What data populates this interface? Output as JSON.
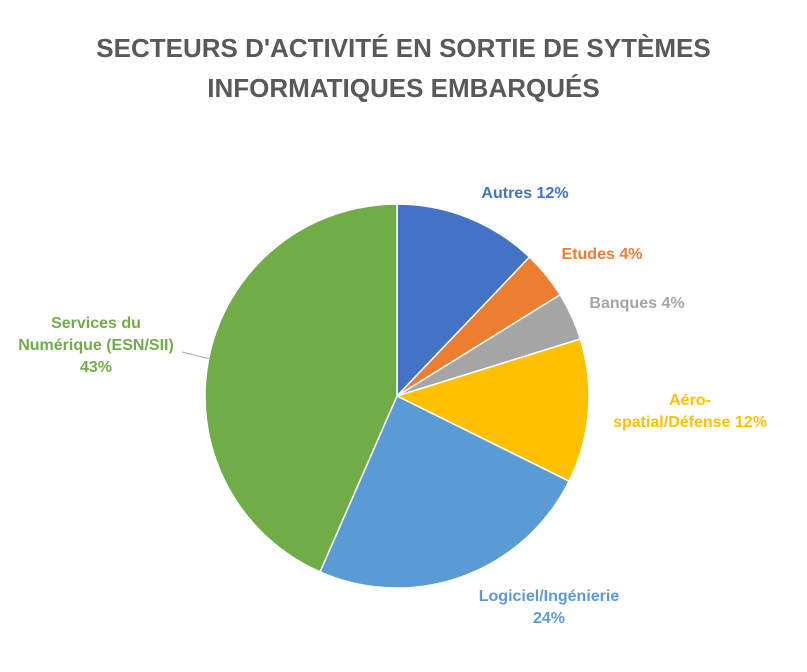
{
  "chart_data": {
    "type": "pie",
    "title_lines": [
      "SECTEURS D'ACTIVITÉ EN SORTIE DE SYTÈMES",
      "INFORMATIQUES EMBARQUÉS"
    ],
    "slices": [
      {
        "label_lines": [
          "Autres 12%"
        ],
        "value": 12,
        "color": "#4472C4"
      },
      {
        "label_lines": [
          "Etudes 4%"
        ],
        "value": 4,
        "color": "#ED7D31"
      },
      {
        "label_lines": [
          "Banques 4%"
        ],
        "value": 4,
        "color": "#A5A5A5"
      },
      {
        "label_lines": [
          "Aéro-",
          "spatial/Défense 12%"
        ],
        "value": 12,
        "color": "#FFC000"
      },
      {
        "label_lines": [
          "Logiciel/Ingénierie",
          "24%"
        ],
        "value": 24,
        "color": "#5B9BD5"
      },
      {
        "label_lines": [
          "Services du",
          "Numérique (ESN/SII)",
          "43%"
        ],
        "value": 43,
        "color": "#70AD47"
      }
    ],
    "leader_line_color": "#A5A5A5",
    "slice_border_color": "#ffffff"
  }
}
